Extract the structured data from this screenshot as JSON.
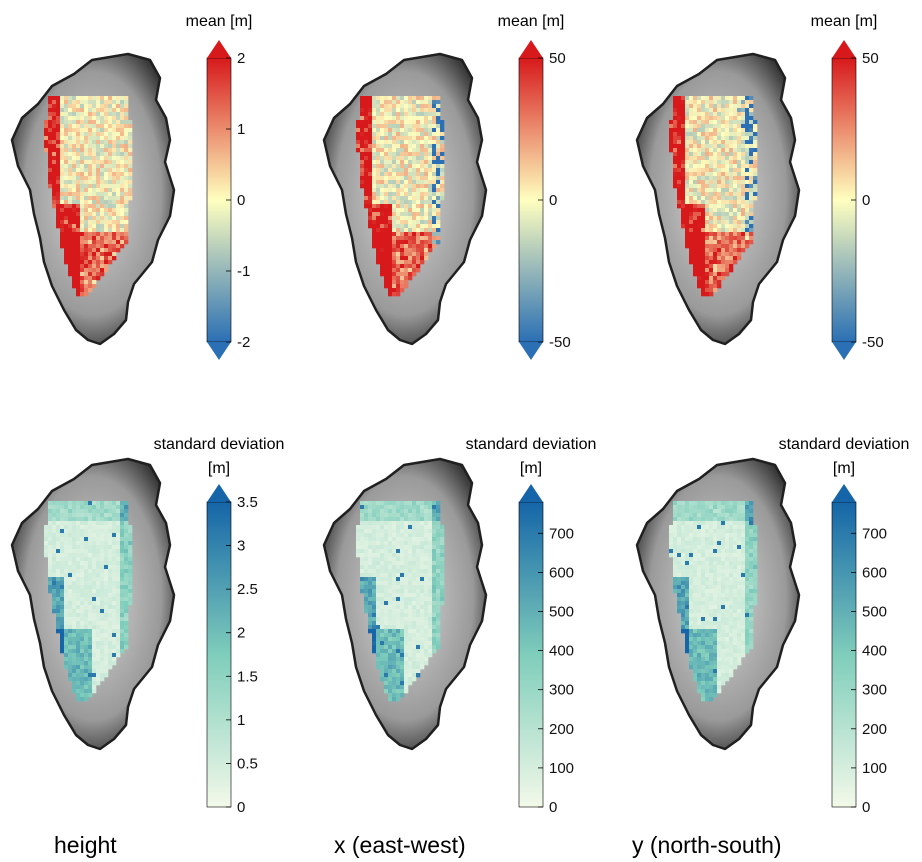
{
  "chart_data": [
    {
      "type": "heatmap",
      "row": "mean",
      "column": "height",
      "colorbar_label": "mean [m]",
      "colormap": "diverging red-yellow-blue",
      "colors": {
        "low": "#2b6fb4",
        "mid": "#ffffbf",
        "high": "#d7191c"
      },
      "range": [
        -2,
        2
      ],
      "extend": "both",
      "ticks": [
        -2,
        -1,
        0,
        1,
        2
      ],
      "tick_labels": [
        "-2",
        "-1",
        "0",
        "1",
        "2"
      ]
    },
    {
      "type": "heatmap",
      "row": "mean",
      "column": "x (east-west)",
      "colorbar_label": "mean [m]",
      "colormap": "diverging red-yellow-blue",
      "colors": {
        "low": "#2b6fb4",
        "mid": "#ffffbf",
        "high": "#d7191c"
      },
      "range": [
        -50,
        50
      ],
      "extend": "both",
      "ticks": [
        -50,
        0,
        50
      ],
      "tick_labels": [
        "-50",
        "0",
        "50"
      ]
    },
    {
      "type": "heatmap",
      "row": "mean",
      "column": "y (north-south)",
      "colorbar_label": "mean [m]",
      "colormap": "diverging red-yellow-blue",
      "colors": {
        "low": "#2b6fb4",
        "mid": "#ffffbf",
        "high": "#d7191c"
      },
      "range": [
        -50,
        50
      ],
      "extend": "both",
      "ticks": [
        -50,
        0,
        50
      ],
      "tick_labels": [
        "-50",
        "0",
        "50"
      ]
    },
    {
      "type": "heatmap",
      "row": "standard deviation",
      "column": "height",
      "colorbar_label": [
        "standard deviation",
        "[m]"
      ],
      "colormap": "sequential green-blue",
      "colors": {
        "low": "#f3f9e9",
        "mid": "#7fcdbb",
        "high": "#1565a8"
      },
      "range": [
        0,
        3.5
      ],
      "extend": "max",
      "ticks": [
        0,
        0.5,
        1,
        1.5,
        2,
        2.5,
        3,
        3.5
      ],
      "tick_labels": [
        "0",
        "0.5",
        "1",
        "1.5",
        "2",
        "2.5",
        "3",
        "3.5"
      ]
    },
    {
      "type": "heatmap",
      "row": "standard deviation",
      "column": "x (east-west)",
      "colorbar_label": [
        "standard deviation",
        "[m]"
      ],
      "colormap": "sequential green-blue",
      "colors": {
        "low": "#f3f9e9",
        "mid": "#7fcdbb",
        "high": "#1565a8"
      },
      "range": [
        0,
        780
      ],
      "extend": "max",
      "ticks": [
        0,
        100,
        200,
        300,
        400,
        500,
        600,
        700
      ],
      "tick_labels": [
        "0",
        "100",
        "200",
        "300",
        "400",
        "500",
        "600",
        "700"
      ]
    },
    {
      "type": "heatmap",
      "row": "standard deviation",
      "column": "y (north-south)",
      "colorbar_label": [
        "standard deviation",
        "[m]"
      ],
      "colormap": "sequential green-blue",
      "colors": {
        "low": "#f3f9e9",
        "mid": "#7fcdbb",
        "high": "#1565a8"
      },
      "range": [
        0,
        780
      ],
      "extend": "max",
      "ticks": [
        0,
        100,
        200,
        300,
        400,
        500,
        600,
        700
      ],
      "tick_labels": [
        "0",
        "100",
        "200",
        "300",
        "400",
        "500",
        "600",
        "700"
      ]
    }
  ],
  "column_titles": [
    "height",
    "x (east-west)",
    "y (north-south)"
  ],
  "landmass_colors": {
    "base": "#9a9a9a",
    "edge": "#202020",
    "interior": "#d8d8d8"
  }
}
